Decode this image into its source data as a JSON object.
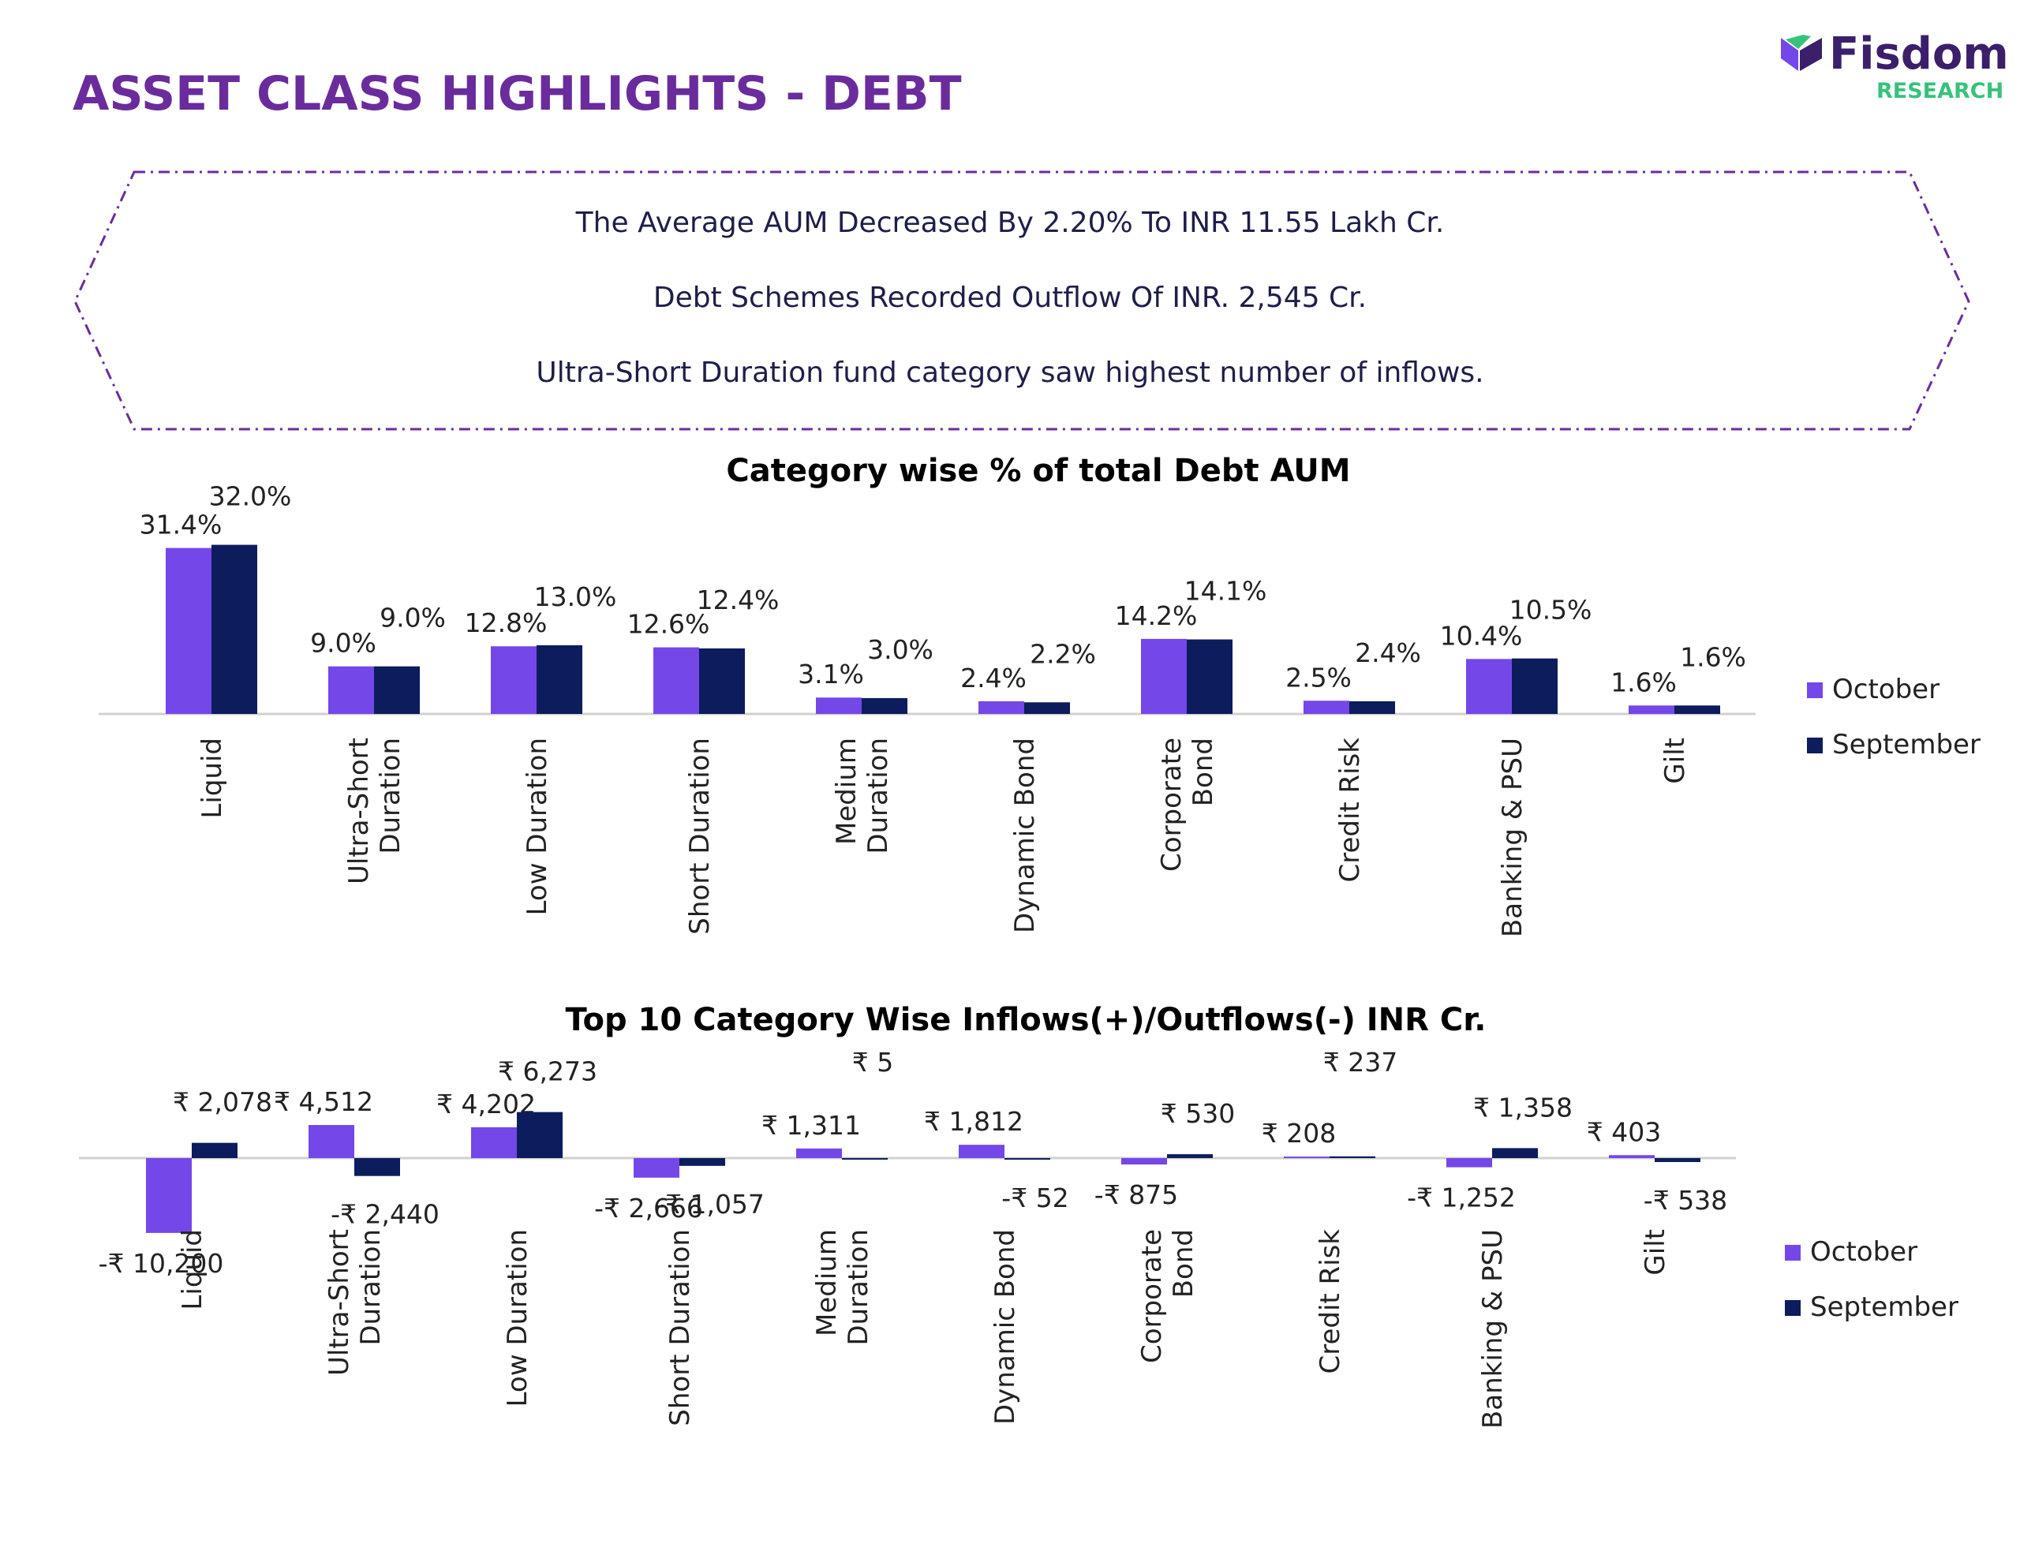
{
  "header": {
    "title": "ASSET CLASS HIGHLIGHTS - DEBT",
    "logo_name": "Fisdom",
    "logo_tagline": "RESEARCH"
  },
  "highlights": [
    "The Average AUM Decreased By 2.20% To INR 11.55 Lakh Cr.",
    "Debt Schemes Recorded Outflow Of INR. 2,545 Cr.",
    "Ultra-Short Duration fund category saw highest number of inflows."
  ],
  "colors": {
    "title": "#6a2c9c",
    "october": "#7447e8",
    "september": "#0c1c5c",
    "logo_accent": "#37c27a",
    "border": "#6a2c9c"
  },
  "chart_data": [
    {
      "type": "bar",
      "title": "Category wise % of total Debt AUM",
      "categories": [
        "Liquid",
        "Ultra-Short Duration",
        "Low Duration",
        "Short Duration",
        "Medium Duration",
        "Dynamic Bond",
        "Corporate Bond",
        "Credit Risk",
        "Banking & PSU",
        "Gilt"
      ],
      "category_label_lines": [
        [
          "Liquid"
        ],
        [
          "Ultra-Short",
          "Duration"
        ],
        [
          "Low Duration"
        ],
        [
          "Short Duration"
        ],
        [
          "Medium",
          "Duration"
        ],
        [
          "Dynamic Bond"
        ],
        [
          "Corporate",
          "Bond"
        ],
        [
          "Credit Risk"
        ],
        [
          "Banking & PSU"
        ],
        [
          "Gilt"
        ]
      ],
      "series": [
        {
          "name": "October",
          "values": [
            31.4,
            9.0,
            12.8,
            12.6,
            3.1,
            2.4,
            14.2,
            2.5,
            10.4,
            1.6
          ],
          "labels": [
            "31.4%",
            "9.0%",
            "12.8%",
            "12.6%",
            "3.1%",
            "2.4%",
            "14.2%",
            "2.5%",
            "10.4%",
            "1.6%"
          ]
        },
        {
          "name": "September",
          "values": [
            32.0,
            9.0,
            13.0,
            12.4,
            3.0,
            2.2,
            14.1,
            2.4,
            10.5,
            1.6
          ],
          "labels": [
            "32.0%",
            "9.0%",
            "13.0%",
            "12.4%",
            "3.0%",
            "2.2%",
            "14.1%",
            "2.4%",
            "10.5%",
            "1.6%"
          ]
        }
      ],
      "unit": "%",
      "legend": "right",
      "grid": false
    },
    {
      "type": "bar",
      "title": "Top 10 Category Wise Inflows(+)/Outflows(-) INR Cr.",
      "categories": [
        "Liquid",
        "Ultra-Short Duration",
        "Low Duration",
        "Short Duration",
        "Medium Duration",
        "Dynamic Bond",
        "Corporate Bond",
        "Credit Risk",
        "Banking & PSU",
        "Gilt"
      ],
      "category_label_lines": [
        [
          "Liquid"
        ],
        [
          "Ultra-Short",
          "Duration"
        ],
        [
          "Low Duration"
        ],
        [
          "Short Duration"
        ],
        [
          "Medium",
          "Duration"
        ],
        [
          "Dynamic Bond"
        ],
        [
          "Corporate",
          "Bond"
        ],
        [
          "Credit Risk"
        ],
        [
          "Banking & PSU"
        ],
        [
          "Gilt"
        ]
      ],
      "series": [
        {
          "name": "October",
          "values": [
            -10200,
            4512,
            4202,
            -2666,
            1311,
            1812,
            -875,
            208,
            -1252,
            403
          ],
          "labels": [
            "-₹ 10,200",
            "₹ 4,512",
            "₹ 4,202",
            "-₹ 2,666",
            "₹ 1,311",
            "₹ 1,812",
            "-₹ 875",
            "₹ 208",
            "-₹ 1,252",
            "₹ 403"
          ]
        },
        {
          "name": "September",
          "values": [
            2078,
            -2440,
            6273,
            -1057,
            5,
            -52,
            530,
            237,
            1358,
            -538
          ],
          "labels": [
            "₹ 2,078",
            "-₹ 2,440",
            "₹ 6,273",
            "-₹ 1,057",
            "₹ 5",
            "-₹ 52",
            "₹ 530",
            "₹ 237",
            "₹ 1,358",
            "-₹ 538"
          ]
        }
      ],
      "unit": "INR Cr.",
      "legend": "right",
      "grid": false
    }
  ]
}
